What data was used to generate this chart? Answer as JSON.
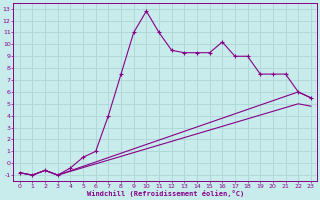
{
  "xlabel": "Windchill (Refroidissement éolien,°C)",
  "xlim": [
    -0.5,
    23.5
  ],
  "ylim": [
    -1.5,
    13.5
  ],
  "xticks": [
    0,
    1,
    2,
    3,
    4,
    5,
    6,
    7,
    8,
    9,
    10,
    11,
    12,
    13,
    14,
    15,
    16,
    17,
    18,
    19,
    20,
    21,
    22,
    23
  ],
  "yticks": [
    -1,
    0,
    1,
    2,
    3,
    4,
    5,
    6,
    7,
    8,
    9,
    10,
    11,
    12,
    13
  ],
  "background_color": "#c8ecec",
  "grid_color": "#b0d8d8",
  "line_color": "#880088",
  "line1_x": [
    0,
    1,
    2,
    3,
    4,
    5,
    6,
    7,
    8,
    9,
    10,
    11,
    12,
    13,
    14,
    15,
    16,
    17,
    18,
    19,
    20,
    21,
    22,
    23
  ],
  "line1_y": [
    -0.8,
    -1.0,
    -0.6,
    -1.0,
    -0.4,
    0.5,
    1.0,
    4.0,
    7.5,
    11.0,
    12.8,
    11.0,
    9.5,
    9.3,
    9.3,
    9.3,
    10.2,
    9.0,
    9.0,
    7.5,
    7.5,
    7.5,
    6.0,
    5.5
  ],
  "line2_x": [
    0,
    1,
    2,
    3,
    22,
    23
  ],
  "line2_y": [
    -0.8,
    -1.0,
    -0.6,
    -1.0,
    6.0,
    5.5
  ],
  "line3_x": [
    0,
    1,
    2,
    3,
    22,
    23
  ],
  "line3_y": [
    -0.8,
    -1.0,
    -0.6,
    -1.0,
    5.0,
    4.8
  ]
}
